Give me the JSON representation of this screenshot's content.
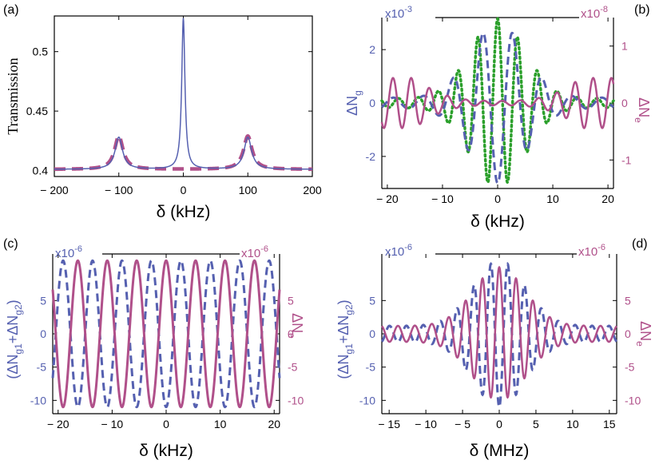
{
  "colors": {
    "blue": "#5560b0",
    "pink": "#b0508a",
    "green": "#2ca02c",
    "axis": "#000000"
  },
  "chart_data": [
    {
      "panel_label": "(a)",
      "type": "line",
      "title": "",
      "xlabel": "δ (kHz)",
      "ylabel": "Transmission",
      "xlim": [
        -200,
        200
      ],
      "ylim": [
        0.395,
        0.53
      ],
      "xticks": [
        -200,
        -100,
        0,
        100,
        200
      ],
      "yticks": [
        0.4,
        0.45,
        0.5
      ],
      "ytick_labels": [
        "0.4",
        "0.45",
        "0.5"
      ],
      "series": [
        {
          "name": "solid blue",
          "style": "solid",
          "baseline": 0.401,
          "peaks": [
            [
              0,
              0.528,
              3
            ],
            [
              -100,
              0.428,
              7
            ],
            [
              100,
              0.428,
              7
            ]
          ]
        },
        {
          "name": "dashed pink",
          "style": "dashed",
          "baseline": 0.401,
          "peaks": [
            [
              -100,
              0.429,
              8
            ],
            [
              100,
              0.429,
              8
            ]
          ]
        }
      ]
    },
    {
      "panel_label": "(b)",
      "type": "line",
      "xlabel": "δ (kHz)",
      "ylabel_left": "ΔN",
      "ylabel_left_sub": "g",
      "ylabel_right": "ΔN",
      "ylabel_right_sub": "e",
      "scale_left": "x10",
      "scale_left_exp": "-3",
      "scale_right": "x10",
      "scale_right_exp": "-8",
      "xlim": [
        -21,
        21
      ],
      "ylim_left": [
        -3.2,
        3.2
      ],
      "ylim_right": [
        -1.5,
        1.5
      ],
      "xticks": [
        -20,
        -10,
        0,
        10,
        20
      ],
      "yticks_left": [
        -2,
        0,
        2
      ],
      "yticks_right": [
        -1,
        0,
        1
      ],
      "series": [
        {
          "name": "ΔNg (dashed blue)",
          "axis": "left",
          "style": "dashed",
          "amplitude": 2.8,
          "width": 7,
          "period": 5.4,
          "floor": 0.2
        },
        {
          "name": "green dotted",
          "axis": "right",
          "style": "dotted",
          "amplitude": 1.4,
          "width": 7,
          "period": 3.6,
          "floor": 0.08
        },
        {
          "name": "ΔNe (solid pink)",
          "axis": "right",
          "style": "solid",
          "amplitude": 0.4,
          "width": 12,
          "period": 3.3,
          "floor": 0.0,
          "edge_growth": true
        }
      ]
    },
    {
      "panel_label": "(c)",
      "type": "line",
      "xlabel": "δ (kHz)",
      "ylabel_left": "(ΔN",
      "ylabel_left_sub1": "g1",
      "ylabel_left_mid": "+ΔN",
      "ylabel_left_sub2": "g2",
      "ylabel_left_end": ")",
      "ylabel_right": "ΔN",
      "ylabel_right_sub": "e",
      "scale_left": "x10",
      "scale_left_exp": "-6",
      "scale_right": "x10",
      "scale_right_exp": "-6",
      "xlim": [
        -21,
        21
      ],
      "ylim": [
        -12,
        12
      ],
      "xticks": [
        -20,
        -10,
        0,
        10,
        20
      ],
      "yticks_left": [
        -10,
        -5,
        0,
        5
      ],
      "yticks_right": [
        -10,
        -5,
        0,
        5
      ],
      "series": [
        {
          "name": "(ΔNg1+ΔNg2) (dashed blue)",
          "style": "dashed",
          "amplitude": 11,
          "period": 5.45,
          "phase": 0.5
        },
        {
          "name": "ΔNe (solid pink)",
          "style": "solid",
          "amplitude": 11,
          "period": 5.45,
          "phase": 0
        }
      ]
    },
    {
      "panel_label": "(d)",
      "type": "line",
      "xlabel": "δ (MHz)",
      "ylabel_left": "(ΔN",
      "ylabel_left_sub1": "g1",
      "ylabel_left_mid": "+ΔN",
      "ylabel_left_sub2": "g2",
      "ylabel_left_end": ")",
      "ylabel_right": "ΔN",
      "ylabel_right_sub": "e",
      "scale_left": "x10",
      "scale_left_exp": "-6",
      "scale_right": "x10",
      "scale_right_exp": "-6",
      "xlim": [
        -16,
        16
      ],
      "ylim": [
        -12,
        12
      ],
      "xticks": [
        -15,
        -10,
        -5,
        0,
        5,
        10,
        15
      ],
      "yticks_left": [
        -10,
        -5,
        0,
        5
      ],
      "yticks_right": [
        -10,
        -5,
        0,
        5
      ],
      "series": [
        {
          "name": "(ΔNg1+ΔNg2) (dashed blue)",
          "style": "dashed",
          "amplitude": -11,
          "width": 5,
          "period": 2.3,
          "floor": 0.5
        },
        {
          "name": "ΔNe (solid pink)",
          "style": "solid",
          "amplitude": 10,
          "width": 5,
          "period": 2.3,
          "floor": 0.5
        }
      ]
    }
  ]
}
